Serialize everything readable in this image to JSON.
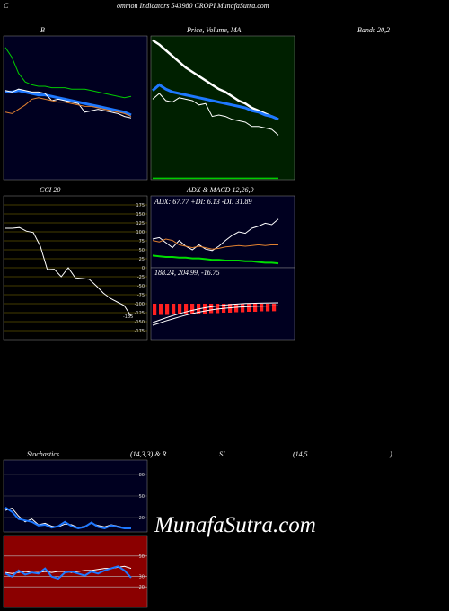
{
  "header": {
    "letter": "C",
    "title": "ommon  Indicators 543980  CROPI MunafaSutra.com"
  },
  "watermark": "MunafaSutra.com",
  "chart_data": [
    {
      "type": "line",
      "title": "B",
      "title_end": "Bands 20,2",
      "background": "#000020",
      "ylim": [
        0,
        100
      ],
      "series": [
        {
          "color": "#00cc00",
          "width": 1,
          "values": [
            92,
            85,
            74,
            68,
            66,
            65,
            65,
            64,
            64,
            64,
            63,
            63,
            63,
            62,
            61,
            60,
            59,
            58,
            57,
            58
          ]
        },
        {
          "color": "#1e78ff",
          "width": 3,
          "values": [
            61,
            61,
            62,
            61,
            60,
            59,
            59,
            58,
            57,
            56,
            55,
            54,
            53,
            52,
            51,
            50,
            49,
            48,
            47,
            45
          ]
        },
        {
          "color": "#ffffff",
          "width": 1,
          "values": [
            62,
            61,
            63,
            62,
            61,
            61,
            60,
            55,
            56,
            55,
            54,
            53,
            47,
            48,
            49,
            48,
            47,
            46,
            44,
            43
          ]
        },
        {
          "color": "#e08030",
          "width": 1,
          "values": [
            47,
            46,
            49,
            52,
            56,
            57,
            56,
            55,
            54,
            54,
            53,
            52,
            51,
            51,
            50,
            49,
            48,
            47,
            46,
            44
          ]
        }
      ]
    },
    {
      "type": "line",
      "title": "Price,  Volume,  MA",
      "background": "#002000",
      "ylim": [
        0,
        100
      ],
      "series": [
        {
          "color": "#ffffff",
          "width": 2.5,
          "values": [
            97,
            94,
            90,
            86,
            82,
            78,
            75,
            72,
            69,
            66,
            63,
            61,
            58,
            55,
            53,
            50,
            48,
            46,
            44,
            42
          ]
        },
        {
          "color": "#1e78ff",
          "width": 3,
          "values": [
            62,
            66,
            63,
            61,
            60,
            59,
            58,
            57,
            56,
            55,
            54,
            53,
            52,
            51,
            50,
            48,
            47,
            45,
            44,
            42
          ]
        },
        {
          "color": "#ffffff",
          "width": 1,
          "values": [
            56,
            60,
            55,
            54,
            57,
            56,
            55,
            52,
            53,
            44,
            45,
            44,
            42,
            41,
            40,
            37,
            37,
            36,
            35,
            31
          ]
        },
        {
          "color": "#00cc00",
          "width": 1.5,
          "values": [
            1,
            1,
            1,
            1,
            1,
            1,
            1,
            1,
            1,
            1,
            1,
            1,
            1,
            1,
            1,
            1,
            1,
            1,
            1,
            1
          ]
        }
      ]
    },
    {
      "type": "line",
      "title": "CCI 20",
      "background": "#000000",
      "grid_color": "#8a7a00",
      "ylim": [
        -200,
        200
      ],
      "yticks": [
        175,
        150,
        125,
        100,
        75,
        50,
        25,
        0,
        -25,
        -50,
        -75,
        -100,
        -125,
        -150,
        -175
      ],
      "series": [
        {
          "color": "#ffffff",
          "width": 1,
          "values": [
            110,
            110,
            112,
            102,
            98,
            60,
            -5,
            -4,
            -25,
            0,
            -28,
            -30,
            -32,
            -50,
            -70,
            -85,
            -95,
            -105,
            -135
          ]
        }
      ]
    },
    {
      "type": "line",
      "title": "ADX  & MACD 12,26,9",
      "label": "ADX: 67.77 +DI: 6.13 -DI: 31.89",
      "background": "#000020",
      "ylim": [
        0,
        100
      ],
      "series": [
        {
          "color": "#ffffff",
          "width": 1,
          "values": [
            40,
            42,
            35,
            28,
            38,
            30,
            25,
            32,
            26,
            24,
            30,
            38,
            45,
            50,
            48,
            55,
            58,
            62,
            60,
            67.77
          ]
        },
        {
          "color": "#e08030",
          "width": 1,
          "values": [
            38,
            36,
            40,
            38,
            32,
            30,
            28,
            30,
            28,
            26,
            27,
            29,
            30,
            31,
            30,
            31,
            32,
            31,
            32,
            31.89
          ]
        },
        {
          "color": "#00dd00",
          "width": 2,
          "values": [
            17,
            16,
            15,
            15,
            14,
            14,
            13,
            13,
            12,
            11,
            11,
            10,
            10,
            10,
            9,
            9,
            8,
            7,
            7,
            6.13
          ]
        }
      ]
    },
    {
      "type": "macd",
      "label": "188.24,  204.99,  -16.75",
      "background": "#000020",
      "ylim": [
        0,
        400
      ],
      "hist_ylim": [
        -80,
        80
      ],
      "histogram": [
        -26,
        -25,
        -25,
        -24,
        -24,
        -23,
        -23,
        -22,
        -22,
        -21,
        -21,
        -20,
        -20,
        -19,
        -19,
        -18,
        -18,
        -17,
        -17,
        -16.75
      ],
      "series": [
        {
          "color": "#ffffff",
          "width": 1,
          "values": [
            80,
            92,
            104,
            115,
            126,
            136,
            145,
            153,
            160,
            166,
            171,
            175,
            178,
            181,
            183,
            185,
            186,
            187,
            188,
            188.24
          ]
        },
        {
          "color": "#ffffff",
          "width": 1,
          "values": [
            95,
            108,
            121,
            133,
            144,
            154,
            163,
            171,
            178,
            184,
            189,
            193,
            196,
            199,
            201,
            202,
            203,
            204,
            204.5,
            204.99
          ]
        }
      ],
      "hist_color": "#ff2020"
    },
    {
      "type": "line",
      "title": "Stochastics",
      "params": "(14,3,3) & R",
      "background": "#000020",
      "grid_color": "#555",
      "ylim": [
        0,
        100
      ],
      "yticks": [
        80,
        50,
        20
      ],
      "series": [
        {
          "color": "#ffffff",
          "width": 1,
          "values": [
            30,
            33,
            22,
            14,
            18,
            10,
            12,
            8,
            7,
            11,
            10,
            6,
            8,
            12,
            9,
            7,
            10,
            8,
            6,
            5
          ]
        },
        {
          "color": "#1e78ff",
          "width": 2,
          "values": [
            34,
            28,
            18,
            16,
            14,
            9,
            10,
            6,
            8,
            14,
            8,
            5,
            7,
            13,
            7,
            5,
            9,
            7,
            5,
            5
          ]
        }
      ]
    },
    {
      "type": "line",
      "title": "SI",
      "params": "(14,5",
      "close": ")",
      "background": "#8b0000",
      "grid_color": "#bbb",
      "ylim": [
        0,
        70
      ],
      "yticks": [
        50,
        30,
        20
      ],
      "series": [
        {
          "color": "#ffffff",
          "width": 1,
          "values": [
            34,
            33,
            34,
            35,
            34,
            34,
            35,
            34,
            35,
            35,
            34,
            35,
            36,
            36,
            37,
            38,
            38,
            39,
            40,
            38
          ]
        },
        {
          "color": "#1e78ff",
          "width": 2,
          "values": [
            33,
            30,
            36,
            32,
            34,
            33,
            38,
            30,
            28,
            34,
            35,
            33,
            31,
            35,
            33,
            36,
            38,
            40,
            36,
            29
          ]
        }
      ]
    }
  ]
}
